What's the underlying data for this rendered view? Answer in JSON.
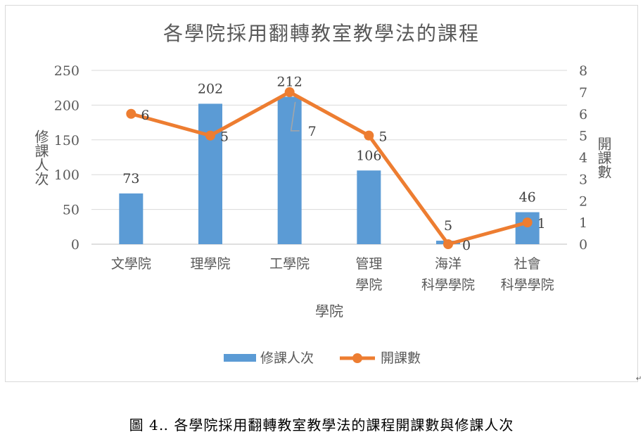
{
  "chart_data": {
    "type": "bar",
    "title": "各學院採用翻轉教室教學法的課程",
    "categories": [
      [
        "文學院"
      ],
      [
        "理學院"
      ],
      [
        "工學院"
      ],
      [
        "管理",
        "學院"
      ],
      [
        "海洋",
        "科學學院"
      ],
      [
        "社會",
        "科學學院"
      ]
    ],
    "xlabel": "學院",
    "ylabel": "修課人次",
    "y2label": "開課數",
    "ylim": [
      0,
      250
    ],
    "y2lim": [
      0,
      8
    ],
    "yticks": [
      "0",
      "50",
      "100",
      "150",
      "200",
      "250"
    ],
    "y2ticks": [
      "0",
      "1",
      "2",
      "3",
      "4",
      "5",
      "6",
      "7",
      "8"
    ],
    "grid": true,
    "legend_position": "bottom",
    "series": [
      {
        "name": "修課人次",
        "type": "bar",
        "axis": "left",
        "color": "#5b9bd5",
        "values": [
          73,
          202,
          212,
          106,
          5,
          46
        ]
      },
      {
        "name": "開課數",
        "type": "line",
        "axis": "right",
        "color": "#ed7d31",
        "values": [
          6,
          5,
          7,
          5,
          0,
          1
        ]
      }
    ]
  },
  "caption": "圖 4‥ 各學院採用翻轉教室教學法的課程開課數與修課人次",
  "para_mark": "↵"
}
